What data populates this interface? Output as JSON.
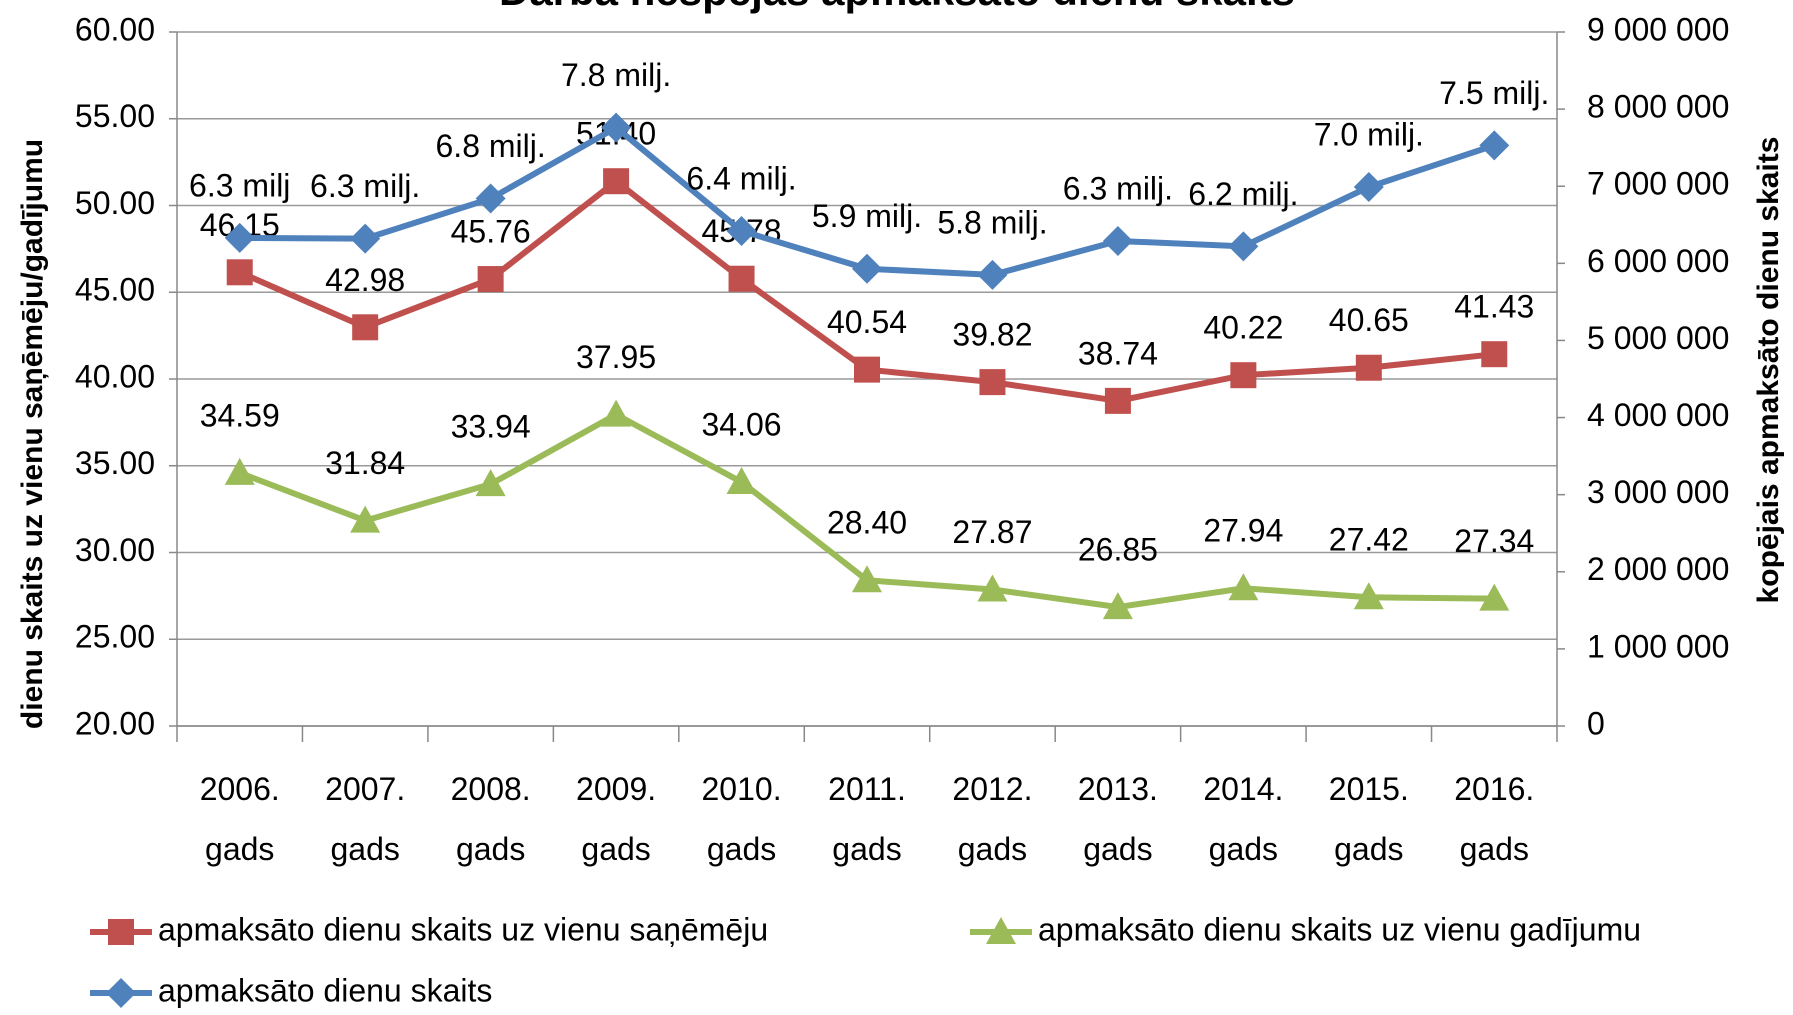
{
  "chart_data": {
    "type": "line",
    "title": "Darba nespējas apmaksāto dienu skaits",
    "ylabel": "dienu skaits uz vienu saņēmēju/gadījumu",
    "y2label": "kopējais apmaksāto dienu skaits",
    "categories": [
      "2006. gads",
      "2007. gads",
      "2008. gads",
      "2009. gads",
      "2010. gads",
      "2011. gads",
      "2012. gads",
      "2013. gads",
      "2014. gads",
      "2015. gads",
      "2016. gads"
    ],
    "ylim": [
      20,
      60
    ],
    "yticks": [
      {
        "value": 20,
        "label": "20.00"
      },
      {
        "value": 25,
        "label": "25.00"
      },
      {
        "value": 30,
        "label": "30.00"
      },
      {
        "value": 35,
        "label": "35.00"
      },
      {
        "value": 40,
        "label": "40.00"
      },
      {
        "value": 45,
        "label": "45.00"
      },
      {
        "value": 50,
        "label": "50.00"
      },
      {
        "value": 55,
        "label": "55.00"
      },
      {
        "value": 60,
        "label": "60.00"
      }
    ],
    "y2lim": [
      0,
      9000000
    ],
    "y2ticks": [
      0,
      {
        "value": 1000000,
        "label": "1 000 000"
      },
      {
        "value": 2000000,
        "label": "2 000 000"
      },
      {
        "value": 3000000,
        "label": "3 000 000"
      },
      {
        "value": 4000000,
        "label": "4 000 000"
      },
      {
        "value": 5000000,
        "label": "5 000 000"
      },
      {
        "value": 6000000,
        "label": "6 000 000"
      },
      {
        "value": 7000000,
        "label": "7 000 000"
      },
      {
        "value": 8000000,
        "label": "8 000 000"
      },
      {
        "value": 9000000,
        "label": "9 000 000"
      }
    ],
    "grid": true,
    "series": [
      {
        "name": "apmaksāto dienu skaits uz vienu saņēmēju",
        "color": "#c0504d",
        "marker": "square",
        "values": [
          46.15,
          42.98,
          45.76,
          51.4,
          45.78,
          40.54,
          39.82,
          38.74,
          40.22,
          40.65,
          41.43
        ],
        "value_labels": [
          "46.15",
          "42.98",
          "45.76",
          "51.40",
          "45.78",
          "40.54",
          "39.82",
          "38.74",
          "40.22",
          "40.65",
          "41.43"
        ]
      },
      {
        "name": "apmaksāto dienu skaits uz vienu gadījumu",
        "color": "#9bbb59",
        "marker": "triangle",
        "values": [
          34.59,
          31.84,
          33.94,
          37.95,
          34.06,
          28.4,
          27.87,
          26.85,
          27.94,
          27.42,
          27.34
        ],
        "value_labels": [
          "34.59",
          "31.84",
          "33.94",
          "37.95",
          "34.06",
          "28.40",
          "27.87",
          "26.85",
          "27.94",
          "27.42",
          "27.34"
        ]
      },
      {
        "name": "apmaksāto dienu skaits",
        "color": "#4f81bd",
        "marker": "diamond",
        "axis": "y2",
        "values": [
          6330000,
          6320000,
          6840000,
          7760000,
          6420000,
          5930000,
          5850000,
          6290000,
          6220000,
          6990000,
          7530000
        ],
        "value_labels": [
          "6.3 milj",
          "6.3 milj.",
          "6.8 milj.",
          "7.8 milj.",
          "6.4 milj.",
          "5.9 milj.",
          "5.8 milj.",
          "6.3 milj.",
          "6.2 milj.",
          "7.0 milj.",
          "7.5 milj."
        ]
      }
    ]
  }
}
